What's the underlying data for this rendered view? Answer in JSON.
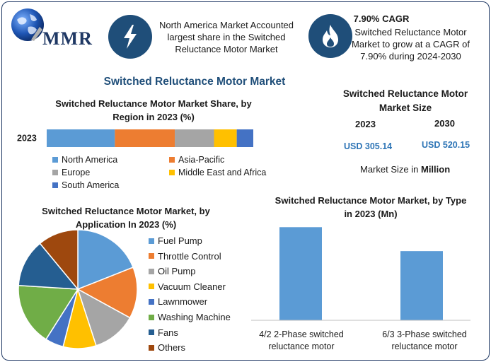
{
  "logo": {
    "text": "MMR"
  },
  "info_left": {
    "text": "North America Market Accounted largest share in the Switched Reluctance Motor Market"
  },
  "info_right": {
    "title": "7.90% CAGR",
    "text": "Switched Reluctance Motor Market to grow at a CAGR of 7.90% during 2024-2030"
  },
  "main_title": "Switched Reluctance Motor Market",
  "market_size": {
    "title": "Switched Reluctance Motor Market Size",
    "years": [
      "2023",
      "2030"
    ],
    "values": [
      "USD 305.14",
      "USD 520.15"
    ],
    "note_prefix": "Market Size in ",
    "note_bold": "Million"
  },
  "colors": {
    "north_america": "#5b9bd5",
    "asia_pacific": "#ed7d31",
    "europe": "#a5a5a5",
    "mea": "#ffc000",
    "south_america": "#4472c4",
    "frame": "#1f3864",
    "icon_bg": "#1f4e79"
  },
  "icons": {
    "left": "lightning-bolt-icon",
    "right": "flame-icon",
    "logo": "globe-icon"
  },
  "chart_data": [
    {
      "type": "bar",
      "orientation": "horizontal-stacked",
      "title": "Switched Reluctance Motor Market Share, by Region in 2023 (%)",
      "categories": [
        "2023"
      ],
      "series": [
        {
          "name": "North America",
          "values": [
            33
          ],
          "color": "#5b9bd5"
        },
        {
          "name": "Asia-Pacific",
          "values": [
            29
          ],
          "color": "#ed7d31"
        },
        {
          "name": "Europe",
          "values": [
            19
          ],
          "color": "#a5a5a5"
        },
        {
          "name": "Middle East and Africa",
          "values": [
            11
          ],
          "color": "#ffc000"
        },
        {
          "name": "South America",
          "values": [
            8
          ],
          "color": "#4472c4"
        }
      ],
      "legend": "bottom"
    },
    {
      "type": "pie",
      "title": "Switched Reluctance Motor Market, by Application In 2023 (%)",
      "labels": [
        "Fuel Pump",
        "Throttle Control",
        "Oil Pump",
        "Vacuum Cleaner",
        "Lawnmower",
        "Washing Machine",
        "Fans",
        "Others"
      ],
      "values": [
        19,
        14,
        12,
        9,
        5,
        17,
        13,
        11
      ],
      "colors": [
        "#5b9bd5",
        "#ed7d31",
        "#a5a5a5",
        "#ffc000",
        "#4472c4",
        "#70ad47",
        "#255e91",
        "#9e480e"
      ],
      "legend": "right"
    },
    {
      "type": "bar",
      "title": "Switched Reluctance Motor Market, by Type in 2023 (Mn)",
      "categories": [
        "4/2 2-Phase switched reluctance motor",
        "6/3 3-Phase switched reluctance motor"
      ],
      "values": [
        175,
        130
      ],
      "ylim": [
        0,
        190
      ],
      "color": "#5b9bd5",
      "grid": false
    }
  ]
}
